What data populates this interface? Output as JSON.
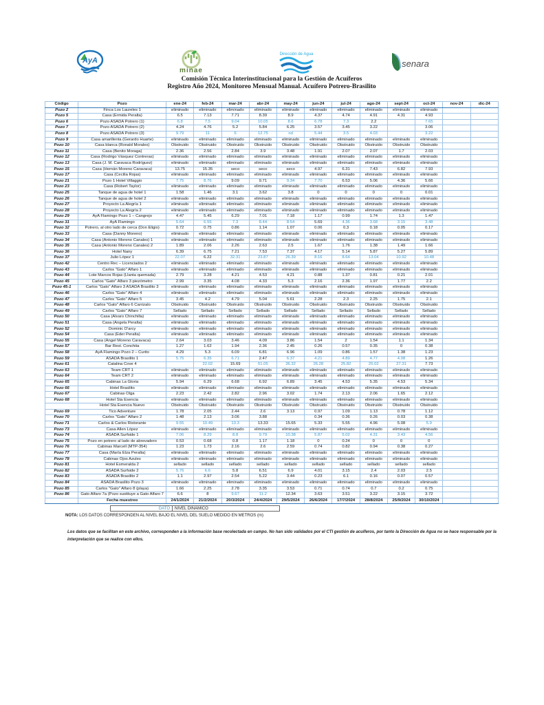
{
  "title": {
    "line1": "Comisión Técnica Interinstitucional para la Gestión de Acuíferos",
    "line2": "Registro Año 2024, Monitoreo Mensual Manual. Acuífero Potrero-Brasilito"
  },
  "logos": {
    "aya_label": "AyA",
    "minae_label": "minae",
    "agua_label": "Dirección de Agua",
    "senara_label": "senara"
  },
  "colors": {
    "value_blue": "#3a99c9",
    "grid_blue": "#9dc3e6",
    "outer_blue": "#2e75b6"
  },
  "table": {
    "col_code": "Código",
    "col_pozo": "Pozo",
    "months": [
      "ene-24",
      "feb-24",
      "mar-24",
      "abr-24",
      "may-24",
      "jun-24",
      "jul-24",
      "ago-24",
      "sept-24",
      "oct-24",
      "nov-24",
      "dic-24"
    ],
    "rows": [
      {
        "code": "Pozo 2",
        "name": "Finca Los Laureles 1",
        "all": "eliminado"
      },
      {
        "code": "Pozo 5",
        "name": "Casa (Ermida Peralta)",
        "values": [
          "6.5",
          "7.13",
          "7.71",
          "8.39",
          "8.9",
          "4.37",
          "4.74",
          "4.91",
          "4.31",
          "4.93"
        ],
        "blue": []
      },
      {
        "code": "Pozo 6",
        "name": "Pozo ASADA Potrero (1)",
        "values": [
          "6.8",
          "7.5",
          "9.04",
          "10.05",
          "8.6",
          "6.78",
          "7.3",
          "2.2",
          "",
          "7.65"
        ],
        "blue": [
          0,
          1,
          2,
          3,
          4,
          5,
          6,
          9
        ]
      },
      {
        "code": "Pozo 7",
        "name": "Pozo ASADA Potrero (2)",
        "values": [
          "4.24",
          "4.76",
          "5.2",
          "5.84",
          "6.25",
          "3.57",
          "3.45",
          "3.22",
          "",
          "3.06"
        ],
        "blue": []
      },
      {
        "code": "Pozo 8",
        "name": "Pozo ASADA Potrero (3)",
        "values": [
          "9.79",
          "11",
          "6",
          "12.75",
          "nd",
          "5.44",
          "3.5",
          "4.03",
          "",
          "3.22"
        ],
        "blue": [
          0,
          1,
          2,
          3,
          4,
          5,
          6,
          7,
          9
        ]
      },
      {
        "code": "Pozo 9",
        "name": "Casa amarillenta (Gerardo Huarte)",
        "all": "eliminado"
      },
      {
        "code": "Pozo 10",
        "name": "Casa blanca (Ronald Morales)",
        "all": "Obstruido"
      },
      {
        "code": "Pozo 11",
        "name": "Casa (Benito Moraga)",
        "values": [
          "2.36",
          "2.56",
          "2.84",
          "3.9",
          "3.48",
          "1.91",
          "2.07",
          "2.07",
          "1.7",
          "2.03"
        ],
        "blue": []
      },
      {
        "code": "Pozo 12",
        "name": "Casa (Rodrigo Vásquez Contreras)",
        "all": "eliminado"
      },
      {
        "code": "Pozo 13",
        "name": "Casa (J. M. Caravaca Rodríguez)",
        "all": "eliminado"
      },
      {
        "code": "Pozo 15",
        "name": "Casa (Hernán Moreno Caravaca)",
        "values": [
          "13.75",
          "15.35",
          "seco",
          "seco",
          "seco",
          "4.97",
          "6.31",
          "7.43",
          "6.82",
          "7.93"
        ],
        "blue": []
      },
      {
        "code": "Pozo 17",
        "name": "Casa (Cecilia Rojas)",
        "all": "eliminado"
      },
      {
        "code": "Pozo 21",
        "name": "Pozo 1 Hotel Villaggio",
        "values": [
          "7.75",
          "8.76",
          "9.09",
          "9.71",
          "9.34",
          "7.70",
          "6.53",
          "5.06",
          "4.36",
          "5.66"
        ],
        "blue": [
          0,
          1,
          4,
          5
        ]
      },
      {
        "code": "Pozo 23",
        "name": "Casa (Robert Taylor)",
        "all": "eliminado"
      },
      {
        "code": "Pozo 25",
        "name": "Tanque de agua de hotel 1",
        "values": [
          "1.58",
          "1.46",
          "3.1",
          "3.62",
          "3.8",
          "0",
          "0",
          "0",
          "0",
          "0.01"
        ],
        "blue": []
      },
      {
        "code": "Pozo 26",
        "name": "Tanque de agua de hotel 2",
        "all": "eliminado"
      },
      {
        "code": "Pozo 27",
        "name": "Proyecto La Alegría 1",
        "all": "eliminado"
      },
      {
        "code": "Pozo 28",
        "name": "Proyecto La Alegría 2",
        "all": "eliminado"
      },
      {
        "code": "Pozo 29",
        "name": "AyA Flamingo Pozo 1 – Cangrejo",
        "values": [
          "4.47",
          "5.45",
          "6.29",
          "7.01",
          "7.18",
          "1.17",
          "0.99",
          "1.74",
          "1.3",
          "1.47"
        ],
        "blue": []
      },
      {
        "code": "Pozo 31",
        "name": "AyA Flamingo",
        "values": [
          "5.64",
          "6.55",
          "7.3",
          "8.44",
          "8.54",
          "5.69",
          "4.36",
          "3.68",
          "3.15",
          "3.48"
        ],
        "blue": [
          0,
          1,
          2,
          3,
          4,
          6,
          7,
          8,
          9
        ]
      },
      {
        "code": "Pozo 32",
        "name": "Potrero, al otro lado de cerca (Don Eligio)",
        "values": [
          "0.72",
          "0.75",
          "0.86",
          "1.14",
          "1.07",
          "0.06",
          "0.3",
          "0.18",
          "0.05",
          "0.17"
        ],
        "blue": []
      },
      {
        "code": "Pozo 33",
        "name": "Casa (Danny Moreno)",
        "all": "eliminado"
      },
      {
        "code": "Pozo 34",
        "name": "Casa (Antonio Moreno Canales) 1",
        "all": "eliminado"
      },
      {
        "code": "Pozo 35",
        "name": "Casa (Antonio Moreno Canales) 2",
        "values": [
          "1.89",
          "2.06",
          "2.26",
          "2.63",
          "2.5",
          "1.67",
          "1.76",
          "1.38",
          "1.49",
          "1.66"
        ],
        "blue": []
      },
      {
        "code": "Pozo 36",
        "name": "Hotel Nany",
        "values": [
          "6.39",
          "6.75",
          "7.21",
          "7.53",
          "7.37",
          "4.17",
          "5.14",
          "5.87",
          "5.27",
          "5.89"
        ],
        "blue": []
      },
      {
        "code": "Pozo 37",
        "name": "Julio López 1",
        "values": [
          "22.07",
          "6.22",
          "32.31",
          "23.87",
          "26.39",
          "8.16",
          "8.64",
          "13.04",
          "10.92",
          "10.48"
        ],
        "blue": [
          0,
          2,
          3,
          4,
          5,
          6,
          7,
          8,
          9
        ]
      },
      {
        "code": "Pozo 42",
        "name": "Centro Rec – Licenciados 2",
        "all": "eliminado"
      },
      {
        "code": "Pozo 43",
        "name": "Carlos \"Gato\" Alfaro 1",
        "all": "eliminado"
      },
      {
        "code": "Pozo 44",
        "name": "Lote Marcos Rojas (Llanta quemada)",
        "values": [
          "2.79",
          "3.28",
          "4.21",
          "4.53",
          "4.21",
          "0.88",
          "1.37",
          "0.81",
          "0.21",
          "2.01"
        ],
        "blue": []
      },
      {
        "code": "Pozo 45",
        "name": "Carlos \"Gato\" Alfaro 3 piezómetro",
        "values": [
          "2.99",
          "3.35",
          "4.08",
          "4.33",
          "5.3",
          "2.16",
          "2.36",
          "1.97",
          "1.77",
          "2.2"
        ],
        "blue": []
      },
      {
        "code": "Pozo 45-1",
        "name": "Carlos \"Gato\" Alfaro 3 ASADA Brasilito 3",
        "all": "eliminado"
      },
      {
        "code": "Pozo 46",
        "name": "Carlos \"Gato\" Alfaro 4",
        "all": "eliminado"
      },
      {
        "code": "Pozo 47",
        "name": "Carlos \"Gato\" Alfaro 5",
        "values": [
          "3.45",
          "4.2",
          "4.79",
          "5.04",
          "5.61",
          "2.28",
          "2.3",
          "2.25",
          "1.75",
          "2.1"
        ],
        "blue": []
      },
      {
        "code": "Pozo 48",
        "name": "Carlos \"Gato\" Alfaro 6 Carrizalo",
        "all": "Obstruido"
      },
      {
        "code": "Pozo 49",
        "name": "Carlos \"Gato\" Alfaro 7",
        "all": "Sellado"
      },
      {
        "code": "Pozo 50",
        "name": "Casa (Álvaro Chinchilla)",
        "all": "eliminado"
      },
      {
        "code": "Pozo 51",
        "name": "Casa (Ángela Peralta)",
        "all": "eliminado"
      },
      {
        "code": "Pozo 52",
        "name": "Dominic D'arcy",
        "all": "eliminado"
      },
      {
        "code": "Pozo 54",
        "name": "Casa (Eder Peralta)",
        "all": "eliminado"
      },
      {
        "code": "Pozo 55",
        "name": "Casa (Angel Moreno Caravaca)",
        "values": [
          "2.64",
          "3.03",
          "3.46",
          "4.09",
          "3.86",
          "1.54",
          "2",
          "1.54",
          "1.1",
          "1.34"
        ],
        "blue": []
      },
      {
        "code": "Pozo 57",
        "name": "Bar Rest. Conchita",
        "values": [
          "1.27",
          "1.62",
          "1.94",
          "2.36",
          "2.45",
          "0.26",
          "0.57",
          "0.35",
          "0",
          "0.38"
        ],
        "blue": []
      },
      {
        "code": "Pozo 58",
        "name": "AyA Flamingo Pozo 2 – Curito",
        "values": [
          "4.29",
          "5.3",
          "6.09",
          "6.81",
          "6.96",
          "1.09",
          "0.86",
          "1.57",
          "1.38",
          "1.23"
        ],
        "blue": []
      },
      {
        "code": "Pozo 59",
        "name": "ASADA Brasilito 1",
        "values": [
          "5.75",
          "6.35",
          "6.71",
          "2.47",
          "6.37",
          "4.21",
          "4.89",
          "4.77",
          "4.08",
          "1.26"
        ],
        "blue": [
          0,
          1,
          2,
          4,
          5,
          6,
          7,
          8
        ]
      },
      {
        "code": "Pozo 61",
        "name": "Catalina Cove 4",
        "values": [
          "",
          "22.02",
          "15.69",
          "51.05",
          "36.32",
          "26.28",
          "25.82",
          "25.02",
          "27.31",
          "7.73"
        ],
        "blue": [
          1,
          3,
          4,
          5,
          6,
          7,
          8
        ]
      },
      {
        "code": "Pozo 63",
        "name": "Team CRT 1",
        "all": "eliminado"
      },
      {
        "code": "Pozo 64",
        "name": "Team CRT 2",
        "all": "eliminado"
      },
      {
        "code": "Pozo 65",
        "name": "Cabinas La Gloria",
        "values": [
          "5.94",
          "6.29",
          "6.68",
          "6.92",
          "6.89",
          "3.45",
          "4.53",
          "5.35",
          "4.53",
          "5.34"
        ],
        "blue": []
      },
      {
        "code": "Pozo 66",
        "name": "Hotel Brasilito",
        "all": "eliminado"
      },
      {
        "code": "Pozo 67",
        "name": "Cabinas Olga",
        "values": [
          "2.23",
          "2.42",
          "2.82",
          "2.96",
          "3.02",
          "1.74",
          "2.13",
          "2.06",
          "1.65",
          "2.12"
        ],
        "blue": []
      },
      {
        "code": "Pozo 68",
        "name": "Hotel Sta Esencia",
        "all": "eliminado"
      },
      {
        "code": "",
        "name": "Hotel Sta Esencia Nuevo",
        "all": "Obstruido"
      },
      {
        "code": "Pozo 69",
        "name": "Tico Adventure",
        "values": [
          "1.78",
          "2.05",
          "2.44",
          "2.6",
          "3.13",
          "0.97",
          "1.09",
          "1.13",
          "0.78",
          "1.12"
        ],
        "blue": []
      },
      {
        "code": "Pozo 70",
        "name": "Carlos \"Gato\" Alfaro 2",
        "values": [
          "1.48",
          "2.13",
          "3.06",
          "3.88",
          "",
          "0.34",
          "0.36",
          "0.26",
          "0.03",
          "0.38"
        ],
        "blue": []
      },
      {
        "code": "Pozo 71",
        "name": "Carlos & Carlos Ristorante",
        "values": [
          "9.55",
          "10.49",
          "13.3",
          "13.33",
          "15.65",
          "5.33",
          "5.55",
          "4.96",
          "5.08",
          "5.9"
        ],
        "blue": [
          0,
          1,
          2,
          9
        ]
      },
      {
        "code": "Pozo 73",
        "name": "Casa Allen López",
        "all": "eliminado"
      },
      {
        "code": "Pozo 74",
        "name": "ASADA Surfside 1",
        "values": [
          "7.06",
          "8.29",
          "8.8",
          "9.79",
          "10.38",
          "5.87",
          "5.02",
          "4.31",
          "3.43",
          "4.56"
        ],
        "blue": [
          0,
          1,
          2,
          3,
          4,
          5,
          6,
          7,
          8,
          9
        ]
      },
      {
        "code": "Pozo 75",
        "name": "Pozo en potrero al lado de abrevadero",
        "values": [
          "0.53",
          "0.68",
          "0.8",
          "1.17",
          "1.18",
          "0",
          "0.24",
          "0",
          "0",
          "0"
        ],
        "blue": []
      },
      {
        "code": "Pozo 76",
        "name": "Cabinas Marcell (MTP-354)",
        "values": [
          "1.23",
          "1.73",
          "2.16",
          "2.6",
          "2.59",
          "0.74",
          "0.82",
          "0.94",
          "0.38",
          "0.27"
        ],
        "blue": []
      },
      {
        "code": "Pozo 77",
        "name": "Casa (María Elza Peralta)",
        "all": "eliminado"
      },
      {
        "code": "Pozo 78",
        "name": "Cabinas Ojos Azules",
        "all": "eliminado"
      },
      {
        "code": "Pozo 81",
        "name": "Hotel Esmeralda 2",
        "all": "sellado"
      },
      {
        "code": "Pozo 82",
        "name": "ASADA Surfside 2",
        "values": [
          "5.76",
          "6.6",
          "5.8",
          "6.51",
          "6.9",
          "4.01",
          "3.15",
          "2.4",
          "2.03",
          "2.5"
        ],
        "blue": [
          0,
          1
        ]
      },
      {
        "code": "Pozo 83",
        "name": "ASADA Brasilito 2",
        "values": [
          "1.1",
          "2.97",
          "2.54",
          "5.22",
          "3.44",
          "0.23",
          "6.1",
          "0.16",
          "0.07",
          "0.57"
        ],
        "blue": []
      },
      {
        "code": "Pozo 84",
        "name": "ASADA Brasilito Pozo 3",
        "all": "eliminado"
      },
      {
        "code": "Pozo 85",
        "name": "Carlos \"Gato\" Alfaro 8 (playa)",
        "values": [
          "1.66",
          "2.25",
          "2.78",
          "3.35",
          "3.53",
          "0.71",
          "0.74",
          "0.7",
          "0.2",
          "0.75"
        ],
        "blue": []
      },
      {
        "code": "Pozo 86",
        "name": "Gato Alfaro 7a (Pozo sustituye a Gato Alfaro 7",
        "values": [
          "6.6",
          "8",
          "9.67",
          "11.2",
          "12.34",
          "3.63",
          "3.51",
          "3.22",
          "3.15",
          "3.72"
        ],
        "blue": [
          2,
          3
        ]
      }
    ],
    "fecha_row": {
      "label": "Fecha muestreo",
      "dates": [
        "24/1/2024",
        "21/2/2024",
        "20/3/2024",
        "24/4/2024",
        "29/5/2024",
        "26/6/2024",
        "17/7/2024",
        "28/8/2024",
        "25/9/2024",
        "30/10/2024"
      ]
    }
  },
  "legend": {
    "dato": "DATO",
    "nivel": "NIVEL DINAMICO"
  },
  "nota": {
    "label": "NOTA:",
    "text": "LOS DATOS CORRESPONDEN AL NIVEL BAJO EL NIVEL DEL SUELO MEDIDO EN METROS (m)"
  },
  "disclaimer": "Los datos que se facilitan en este archivo, corresponden a la información base recolectada en campo. No han sido validados por el CTI gestión de acuíferos, por tanto la Dirección de Agua no se hace responsable por la interpretación que se realice con ellos."
}
